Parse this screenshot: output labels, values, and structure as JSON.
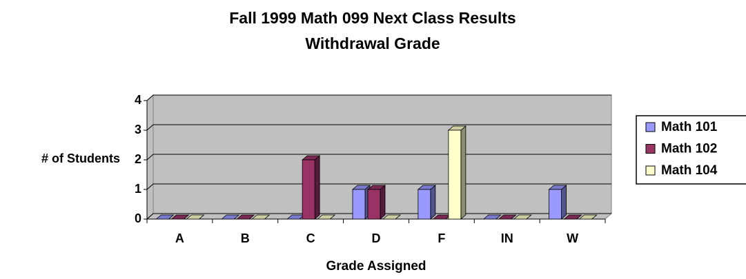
{
  "chart_data": {
    "type": "bar3d",
    "title": "Fall 1999 Math 099 Next Class Results",
    "subtitle": "Withdrawal Grade",
    "x_label": "Grade Assigned",
    "y_label": "# of Students",
    "categories": [
      "A",
      "B",
      "C",
      "D",
      "F",
      "IN",
      "W"
    ],
    "series": [
      {
        "name": "Math 101",
        "color": "#9999ff",
        "values": [
          0,
          0,
          0,
          1,
          1,
          0,
          1
        ]
      },
      {
        "name": "Math 102",
        "color": "#993366",
        "values": [
          0,
          0,
          2,
          1,
          0,
          0,
          0
        ]
      },
      {
        "name": "Math 104",
        "color": "#ffffcc",
        "values": [
          0,
          0,
          0,
          0,
          3,
          0,
          0
        ]
      }
    ],
    "ylim": [
      0,
      4
    ],
    "yticks": [
      0,
      1,
      2,
      3,
      4
    ],
    "grid": true,
    "legend": "right"
  }
}
